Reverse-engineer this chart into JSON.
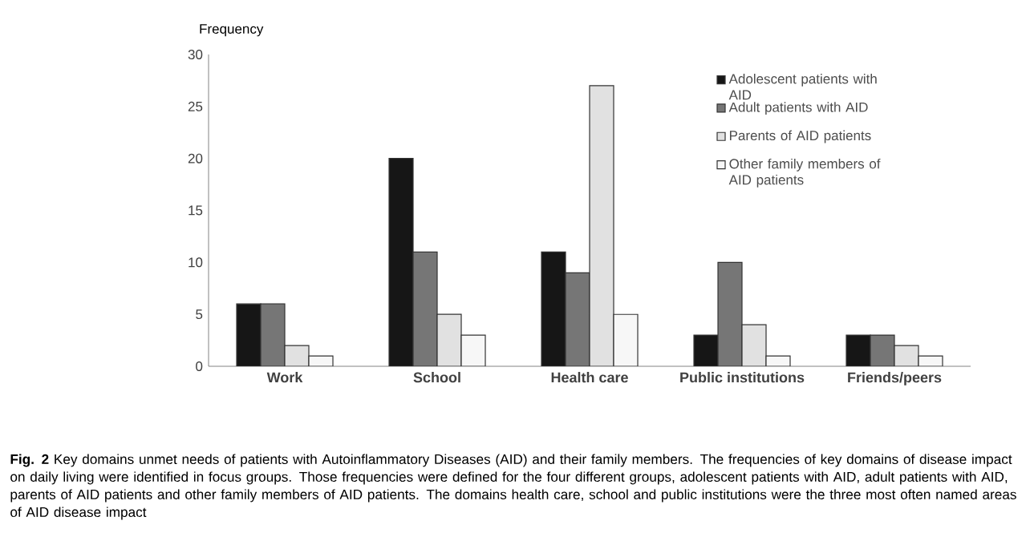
{
  "chart_data": {
    "type": "bar",
    "ylabel": "Frequency",
    "categories": [
      "Work",
      "School",
      "Health care",
      "Public institutions",
      "Friends/peers"
    ],
    "series": [
      {
        "name": "Adolescent patients with AID",
        "color": "#161616",
        "values": [
          6,
          20,
          11,
          3,
          3
        ]
      },
      {
        "name": "Adult patients with AID",
        "color": "#767676",
        "values": [
          6,
          11,
          9,
          10,
          3
        ]
      },
      {
        "name": "Parents of AID patients",
        "color": "#e1e1e1",
        "values": [
          2,
          5,
          27,
          4,
          2
        ]
      },
      {
        "name": "Other family members of AID patients",
        "color": "#f7f7f7",
        "values": [
          1,
          3,
          5,
          1,
          1
        ]
      }
    ],
    "ylim": [
      0,
      30
    ],
    "yticks": [
      0,
      5,
      10,
      15,
      20,
      25,
      30
    ],
    "legend": "top right",
    "annotations": [
      "**Fig. 2** Key domains unmet needs of patients with Autoinflammatory Diseases (AID) and their family members. The frequencies of key domains of disease impact on daily living were identified in focus groups. Those frequencies were defined for the four different groups, adolescent patients with AID, adult patients with AID, parents of AID patients and other family members of AID patients. The domains health care, school and public institutions were the three most often named areas of AID disease impact"
    ]
  }
}
